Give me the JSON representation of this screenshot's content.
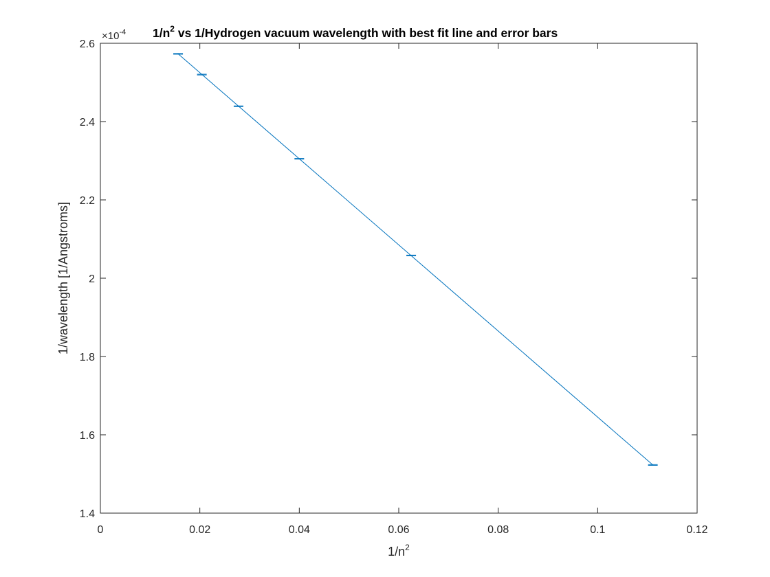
{
  "chart_data": {
    "type": "line",
    "title": {
      "part1": "1/n",
      "sup": "2",
      "part2": " vs 1/Hydrogen vacuum wavelength with best fit line and error bars"
    },
    "xlabel": {
      "base": "1/n",
      "sup": "2"
    },
    "ylabel": "1/wavelength [1/Angstroms]",
    "y_multiplier": {
      "prefix": "×10",
      "exponent": "-4"
    },
    "xlim": [
      0,
      0.12
    ],
    "ylim": [
      1.4,
      2.6
    ],
    "xticks": [
      0,
      0.02,
      0.04,
      0.06,
      0.08,
      0.1,
      0.12
    ],
    "xtick_labels": [
      "0",
      "0.02",
      "0.04",
      "0.06",
      "0.08",
      "0.1",
      "0.12"
    ],
    "yticks": [
      1.4,
      1.6,
      1.8,
      2.0,
      2.2,
      2.4,
      2.6
    ],
    "ytick_labels": [
      "1.4",
      "1.6",
      "1.8",
      "2",
      "2.2",
      "2.4",
      "2.6"
    ],
    "grid": false,
    "box": true,
    "series": [
      {
        "kind": "errorbar",
        "x": [
          0.1111,
          0.0625,
          0.04,
          0.02778,
          0.02041,
          0.01563
        ],
        "y": [
          1.523,
          2.058,
          2.305,
          2.439,
          2.52,
          2.573
        ],
        "y_err": [
          0.001,
          0.001,
          0.001,
          0.001,
          0.001,
          0.001
        ]
      },
      {
        "kind": "line",
        "x": [
          0.01563,
          0.1111
        ],
        "y": [
          2.573,
          1.523
        ]
      }
    ],
    "colors": {
      "series": "#0072BD",
      "axes": "#262626"
    }
  }
}
